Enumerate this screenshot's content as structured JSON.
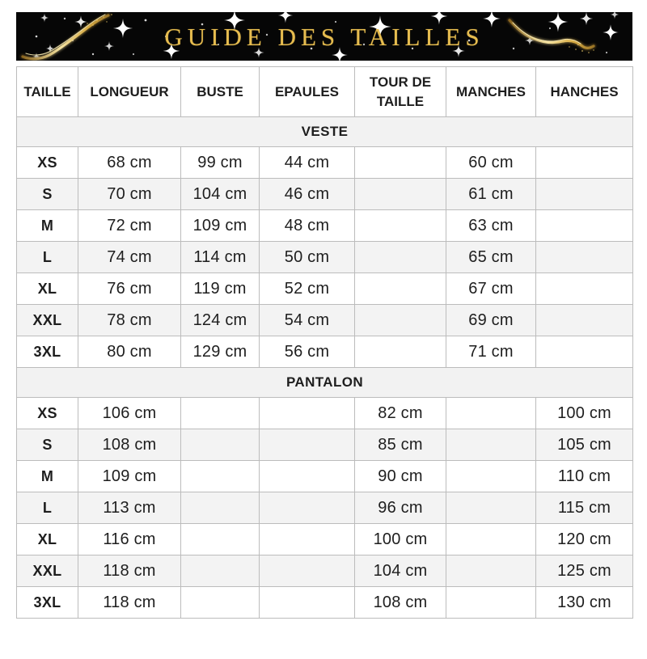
{
  "banner": {
    "title": "GUIDE DES TAILLES",
    "background_color": "#060606",
    "title_color": "#e6bc4f",
    "decorations": [
      "gold-swoosh-left",
      "gold-swoosh-right",
      "white-sparkle-stars"
    ]
  },
  "table": {
    "columns": [
      "TAILLE",
      "LONGUEUR",
      "BUSTE",
      "EPAULES",
      "TOUR DE TAILLE",
      "MANCHES",
      "HANCHES"
    ],
    "sections": [
      {
        "label": "VESTE",
        "rows": [
          {
            "size": "XS",
            "values": [
              "68 cm",
              "99 cm",
              "44 cm",
              "",
              "60 cm",
              ""
            ]
          },
          {
            "size": "S",
            "values": [
              "70 cm",
              "104 cm",
              "46 cm",
              "",
              "61 cm",
              ""
            ]
          },
          {
            "size": "M",
            "values": [
              "72 cm",
              "109 cm",
              "48 cm",
              "",
              "63 cm",
              ""
            ]
          },
          {
            "size": "L",
            "values": [
              "74 cm",
              "114 cm",
              "50 cm",
              "",
              "65 cm",
              ""
            ]
          },
          {
            "size": "XL",
            "values": [
              "76 cm",
              "119 cm",
              "52 cm",
              "",
              "67 cm",
              ""
            ]
          },
          {
            "size": "XXL",
            "values": [
              "78 cm",
              "124 cm",
              "54 cm",
              "",
              "69 cm",
              ""
            ]
          },
          {
            "size": "3XL",
            "values": [
              "80 cm",
              "129 cm",
              "56 cm",
              "",
              "71 cm",
              ""
            ]
          }
        ]
      },
      {
        "label": "PANTALON",
        "rows": [
          {
            "size": "XS",
            "values": [
              "106 cm",
              "",
              "",
              "82 cm",
              "",
              "100 cm"
            ]
          },
          {
            "size": "S",
            "values": [
              "108 cm",
              "",
              "",
              "85 cm",
              "",
              "105 cm"
            ]
          },
          {
            "size": "M",
            "values": [
              "109 cm",
              "",
              "",
              "90 cm",
              "",
              "110 cm"
            ]
          },
          {
            "size": "L",
            "values": [
              "113 cm",
              "",
              "",
              "96 cm",
              "",
              "115 cm"
            ]
          },
          {
            "size": "XL",
            "values": [
              "116 cm",
              "",
              "",
              "100 cm",
              "",
              "120 cm"
            ]
          },
          {
            "size": "XXL",
            "values": [
              "118 cm",
              "",
              "",
              "104 cm",
              "",
              "125 cm"
            ]
          },
          {
            "size": "3XL",
            "values": [
              "118 cm",
              "",
              "",
              "108 cm",
              "",
              "130 cm"
            ]
          }
        ]
      }
    ]
  },
  "colors": {
    "stripe_row": "#f3f3f3",
    "section_row": "#f2f2f2",
    "border": "#bcbcbc",
    "text": "#1e1e1e"
  }
}
